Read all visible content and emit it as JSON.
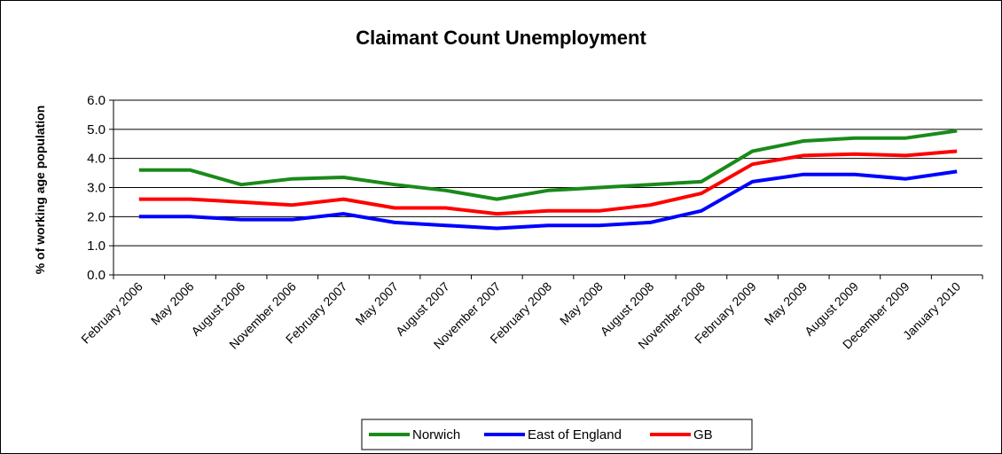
{
  "chart_data": {
    "type": "line",
    "title": "Claimant Count Unemployment",
    "ylabel": "% of working age population",
    "xlabel": "",
    "ylim": [
      0,
      6
    ],
    "yticks": [
      "0.0",
      "1.0",
      "2.0",
      "3.0",
      "4.0",
      "5.0",
      "6.0"
    ],
    "grid": true,
    "legend_position": "bottom",
    "categories": [
      "February 2006",
      "May 2006",
      "August 2006",
      "November 2006",
      "February 2007",
      "May 2007",
      "August 2007",
      "November 2007",
      "February 2008",
      "May 2008",
      "August 2008",
      "November 2008",
      "February 2009",
      "May 2009",
      "August 2009",
      "December 2009",
      "January 2010"
    ],
    "series": [
      {
        "name": "Norwich",
        "color": "#1a8a1a",
        "values": [
          3.6,
          3.6,
          3.1,
          3.3,
          3.35,
          3.1,
          2.9,
          2.6,
          2.9,
          3.0,
          3.1,
          3.2,
          4.25,
          4.6,
          4.7,
          4.7,
          4.95
        ]
      },
      {
        "name": "East of England",
        "color": "#0000ff",
        "values": [
          2.0,
          2.0,
          1.9,
          1.9,
          2.1,
          1.8,
          1.7,
          1.6,
          1.7,
          1.7,
          1.8,
          2.2,
          3.2,
          3.45,
          3.45,
          3.3,
          3.55
        ]
      },
      {
        "name": "GB",
        "color": "#ff0000",
        "values": [
          2.6,
          2.6,
          2.5,
          2.4,
          2.6,
          2.3,
          2.3,
          2.1,
          2.2,
          2.2,
          2.4,
          2.8,
          3.8,
          4.1,
          4.15,
          4.1,
          4.25
        ]
      }
    ]
  }
}
